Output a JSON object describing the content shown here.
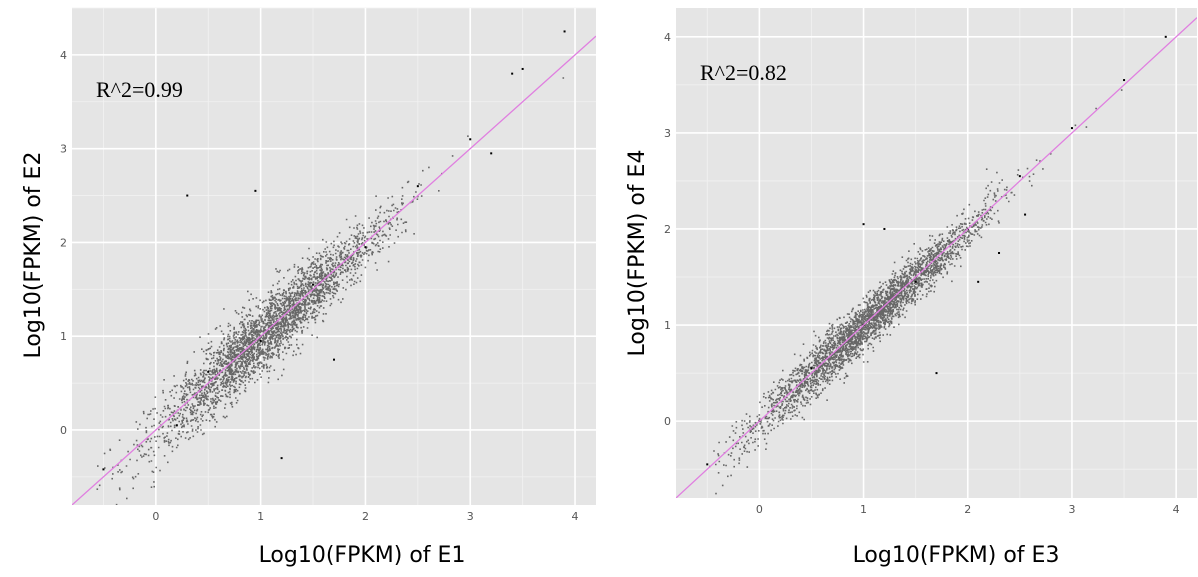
{
  "chart_data": [
    {
      "type": "scatter",
      "title": "",
      "xlabel": "Log10(FPKM)  of E1",
      "ylabel": "Log10(FPKM)  of E2",
      "annotation": "R^2=0.99",
      "xlim": [
        -0.8,
        4.2
      ],
      "ylim": [
        -0.8,
        4.5
      ],
      "xticks": [
        0,
        1,
        2,
        3,
        4
      ],
      "yticks": [
        0,
        1,
        2,
        3,
        4
      ],
      "grid": true,
      "colors": {
        "points": "#000000",
        "fit_line": "#e07fe0",
        "panel": "#e5e5e5"
      },
      "fit_line": {
        "slope": 1.0,
        "intercept": 0.0
      },
      "point_cloud": {
        "x_range": [
          -0.6,
          4.0
        ],
        "spread_sd": 0.16,
        "count": 3200
      },
      "points": [
        [
          -0.5,
          -0.42
        ],
        [
          0.2,
          0.05
        ],
        [
          0.5,
          0.62
        ],
        [
          1.0,
          0.95
        ],
        [
          1.5,
          1.55
        ],
        [
          2.0,
          1.95
        ],
        [
          2.5,
          2.6
        ],
        [
          3.0,
          3.1
        ],
        [
          3.4,
          3.8
        ],
        [
          3.5,
          3.85
        ],
        [
          3.9,
          4.25
        ],
        [
          0.3,
          2.5
        ],
        [
          0.95,
          2.55
        ],
        [
          1.2,
          -0.3
        ],
        [
          1.7,
          0.75
        ],
        [
          3.2,
          2.95
        ]
      ]
    },
    {
      "type": "scatter",
      "title": "",
      "xlabel": "Log10(FPKM)  of E3",
      "ylabel": "Log10(FPKM)  of E4",
      "annotation": "R^2=0.82",
      "xlim": [
        -0.8,
        4.2
      ],
      "ylim": [
        -0.8,
        4.3
      ],
      "xticks": [
        0,
        1,
        2,
        3,
        4
      ],
      "yticks": [
        0,
        1,
        2,
        3,
        4
      ],
      "grid": true,
      "colors": {
        "points": "#000000",
        "fit_line": "#e07fe0",
        "panel": "#e5e5e5"
      },
      "fit_line": {
        "slope": 1.0,
        "intercept": 0.0
      },
      "point_cloud": {
        "x_range": [
          -0.5,
          4.0
        ],
        "spread_sd": 0.11,
        "count": 3200
      },
      "points": [
        [
          -0.5,
          -0.45
        ],
        [
          0.0,
          0.0
        ],
        [
          0.5,
          0.55
        ],
        [
          1.0,
          1.0
        ],
        [
          1.5,
          1.45
        ],
        [
          2.0,
          2.0
        ],
        [
          2.5,
          2.55
        ],
        [
          3.0,
          3.05
        ],
        [
          3.5,
          3.55
        ],
        [
          3.9,
          4.0
        ],
        [
          1.0,
          2.05
        ],
        [
          1.2,
          2.0
        ],
        [
          2.1,
          1.45
        ],
        [
          2.3,
          1.75
        ],
        [
          2.55,
          2.15
        ],
        [
          1.7,
          0.5
        ]
      ]
    }
  ]
}
